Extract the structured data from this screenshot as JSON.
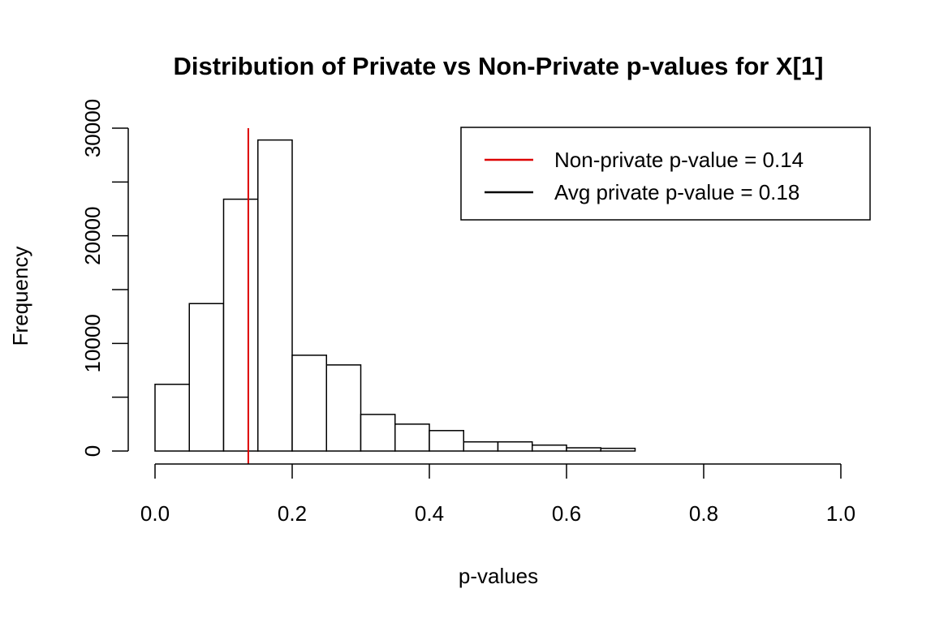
{
  "chart_data": {
    "type": "bar",
    "title": "Distribution of Private vs Non-Private p-values for X[1]",
    "xlabel": "p-values",
    "ylabel": "Frequency",
    "xlim": [
      0,
      1
    ],
    "ylim": [
      0,
      30000
    ],
    "x_ticks": [
      "0.0",
      "0.2",
      "0.4",
      "0.6",
      "0.8",
      "1.0"
    ],
    "x_tick_values": [
      0,
      0.2,
      0.4,
      0.6,
      0.8,
      1.0
    ],
    "y_ticks": [
      "0",
      "10000",
      "20000",
      "30000"
    ],
    "y_tick_values": [
      0,
      5000,
      10000,
      15000,
      20000,
      25000,
      30000
    ],
    "y_labeled_values": [
      0,
      10000,
      20000,
      30000
    ],
    "bins": [
      {
        "x0": 0.0,
        "x1": 0.05,
        "count": 6200
      },
      {
        "x0": 0.05,
        "x1": 0.1,
        "count": 13700
      },
      {
        "x0": 0.1,
        "x1": 0.15,
        "count": 23400
      },
      {
        "x0": 0.15,
        "x1": 0.2,
        "count": 28900
      },
      {
        "x0": 0.2,
        "x1": 0.25,
        "count": 8900
      },
      {
        "x0": 0.25,
        "x1": 0.3,
        "count": 8000
      },
      {
        "x0": 0.3,
        "x1": 0.35,
        "count": 3400
      },
      {
        "x0": 0.35,
        "x1": 0.4,
        "count": 2500
      },
      {
        "x0": 0.4,
        "x1": 0.45,
        "count": 1900
      },
      {
        "x0": 0.45,
        "x1": 0.5,
        "count": 850
      },
      {
        "x0": 0.5,
        "x1": 0.55,
        "count": 850
      },
      {
        "x0": 0.55,
        "x1": 0.6,
        "count": 550
      },
      {
        "x0": 0.6,
        "x1": 0.65,
        "count": 300
      },
      {
        "x0": 0.65,
        "x1": 0.7,
        "count": 250
      }
    ],
    "non_private_line": {
      "x": 0.136,
      "color": "#dd0000"
    },
    "bar_fill": "#ffffff",
    "bar_stroke": "#000000",
    "legend_position": "top-right",
    "legend": [
      {
        "label": "Non-private p-value = 0.14",
        "color": "#dd0000"
      },
      {
        "label": "Avg private p-value = 0.18",
        "color": "#000000"
      }
    ],
    "grid": false
  }
}
